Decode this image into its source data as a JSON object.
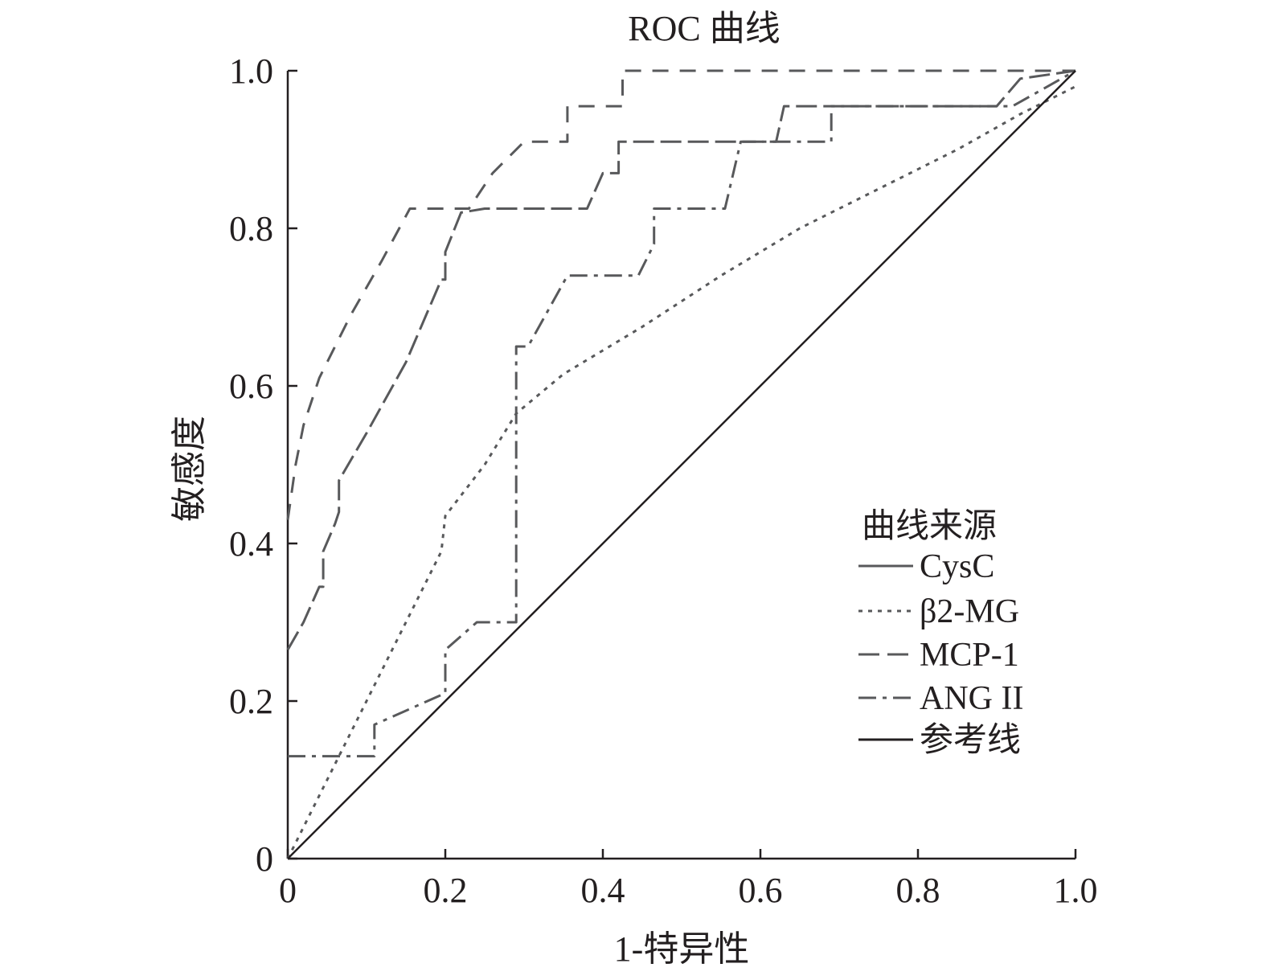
{
  "chart_data": {
    "type": "line",
    "title": "ROC 曲线",
    "xlabel": "1-特异性",
    "ylabel": "敏感度",
    "xlim": [
      0,
      1
    ],
    "ylim": [
      0,
      1
    ],
    "x_ticks": [
      "0",
      "0.2",
      "0.4",
      "0.6",
      "0.8",
      "1.0"
    ],
    "y_ticks": [
      "0",
      "0.2",
      "0.4",
      "0.6",
      "0.8",
      "1.0"
    ],
    "grid": false,
    "legend": {
      "title": "曲线来源",
      "position": "right",
      "entries": [
        "CysC",
        "β2-MG",
        "MCP-1",
        "ANG II",
        "参考线"
      ]
    },
    "colors": {
      "ink": "#231f20",
      "curves": "#58595b"
    },
    "series": [
      {
        "name": "CysC",
        "style": "long-dash",
        "points": [
          [
            0,
            0.265
          ],
          [
            0.02,
            0.3
          ],
          [
            0.04,
            0.345
          ],
          [
            0.045,
            0.345
          ],
          [
            0.045,
            0.39
          ],
          [
            0.06,
            0.425
          ],
          [
            0.065,
            0.44
          ],
          [
            0.065,
            0.48
          ],
          [
            0.1,
            0.54
          ],
          [
            0.15,
            0.63
          ],
          [
            0.195,
            0.735
          ],
          [
            0.2,
            0.735
          ],
          [
            0.2,
            0.77
          ],
          [
            0.22,
            0.82
          ],
          [
            0.25,
            0.825
          ],
          [
            0.38,
            0.825
          ],
          [
            0.4,
            0.87
          ],
          [
            0.42,
            0.87
          ],
          [
            0.42,
            0.91
          ],
          [
            0.56,
            0.91
          ],
          [
            0.58,
            0.91
          ],
          [
            0.62,
            0.91
          ],
          [
            0.63,
            0.955
          ],
          [
            0.9,
            0.955
          ],
          [
            0.93,
            0.99
          ],
          [
            1.0,
            1.0
          ]
        ]
      },
      {
        "name": "β2-MG",
        "style": "dotted",
        "points": [
          [
            0,
            0.0
          ],
          [
            0.05,
            0.1
          ],
          [
            0.1,
            0.2
          ],
          [
            0.15,
            0.3
          ],
          [
            0.195,
            0.39
          ],
          [
            0.2,
            0.435
          ],
          [
            0.25,
            0.5
          ],
          [
            0.29,
            0.565
          ],
          [
            0.35,
            0.615
          ],
          [
            0.45,
            0.675
          ],
          [
            0.55,
            0.74
          ],
          [
            0.65,
            0.8
          ],
          [
            0.75,
            0.85
          ],
          [
            0.85,
            0.9
          ],
          [
            0.93,
            0.945
          ],
          [
            0.95,
            0.955
          ],
          [
            1.0,
            0.98
          ]
        ]
      },
      {
        "name": "MCP-1",
        "style": "dashed",
        "points": [
          [
            0,
            0.43
          ],
          [
            0.01,
            0.5
          ],
          [
            0.02,
            0.55
          ],
          [
            0.04,
            0.61
          ],
          [
            0.08,
            0.69
          ],
          [
            0.12,
            0.76
          ],
          [
            0.155,
            0.825
          ],
          [
            0.23,
            0.825
          ],
          [
            0.26,
            0.87
          ],
          [
            0.3,
            0.91
          ],
          [
            0.355,
            0.91
          ],
          [
            0.355,
            0.955
          ],
          [
            0.425,
            0.955
          ],
          [
            0.425,
            1.0
          ],
          [
            1.0,
            1.0
          ]
        ]
      },
      {
        "name": "ANG II",
        "style": "dash-dot",
        "points": [
          [
            0,
            0.13
          ],
          [
            0.11,
            0.13
          ],
          [
            0.11,
            0.17
          ],
          [
            0.2,
            0.21
          ],
          [
            0.2,
            0.265
          ],
          [
            0.24,
            0.3
          ],
          [
            0.29,
            0.3
          ],
          [
            0.29,
            0.65
          ],
          [
            0.305,
            0.65
          ],
          [
            0.355,
            0.74
          ],
          [
            0.445,
            0.74
          ],
          [
            0.465,
            0.78
          ],
          [
            0.465,
            0.825
          ],
          [
            0.555,
            0.825
          ],
          [
            0.575,
            0.91
          ],
          [
            0.62,
            0.91
          ],
          [
            0.69,
            0.91
          ],
          [
            0.69,
            0.955
          ],
          [
            0.92,
            0.955
          ],
          [
            1.0,
            1.0
          ]
        ]
      },
      {
        "name": "参考线",
        "style": "solid",
        "points": [
          [
            0,
            0
          ],
          [
            1,
            1
          ]
        ]
      }
    ]
  }
}
